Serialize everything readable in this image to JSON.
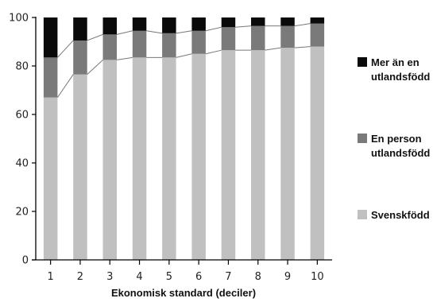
{
  "chart_data": {
    "type": "bar",
    "stacked": true,
    "categories": [
      "1",
      "2",
      "3",
      "4",
      "5",
      "6",
      "7",
      "8",
      "9",
      "10"
    ],
    "xlabel": "Ekonomisk standard (deciler)",
    "ylabel": "",
    "ylim": [
      0,
      100
    ],
    "yticks": [
      0,
      20,
      40,
      60,
      80,
      100
    ],
    "grid": false,
    "legend_position": "right",
    "connector_lines": true,
    "series": [
      {
        "name": "Svenskfödd",
        "color": "#c0c0c0",
        "values": [
          67,
          76.5,
          82.5,
          83.5,
          83.5,
          85,
          86.5,
          86.5,
          87.5,
          88
        ]
      },
      {
        "name": "En person utlandsfödd",
        "color": "#7a7a7a",
        "values": [
          16.5,
          14,
          10.5,
          11,
          10,
          9.5,
          9.5,
          10,
          9,
          9.5
        ]
      },
      {
        "name": "Mer än en utlandsfödd",
        "color": "#0a0a0a",
        "values": [
          16.5,
          9.5,
          7,
          5.5,
          6.5,
          5.5,
          4,
          3.5,
          3.5,
          2.5
        ]
      }
    ],
    "legend": [
      {
        "series": "Mer än en utlandsfödd",
        "lines": [
          "Mer än en",
          "utlandsfödd"
        ]
      },
      {
        "series": "En person utlandsfödd",
        "lines": [
          "En person",
          "utlandsfödd"
        ]
      },
      {
        "series": "Svenskfödd",
        "lines": [
          "Svenskfödd"
        ]
      }
    ]
  }
}
